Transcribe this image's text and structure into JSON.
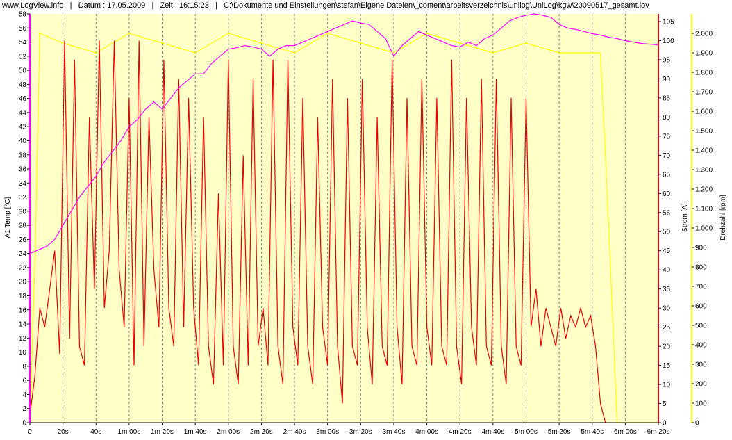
{
  "header": {
    "site": "www.LogView.info",
    "datum_label": "Datum : 17.05.2009",
    "zeit_label": "Zeit : 16:15:23",
    "path": "C:\\Dokumente und Einstellungen\\stefan\\Eigene Dateien\\_content\\arbeitsverzeichnis\\unilog\\UniLog\\kgw\\20090517_gesamt.lov"
  },
  "colors": {
    "plot_bg": "#ffffc8",
    "temp": "#ff00ff",
    "strom": "#ee0000",
    "drehzahl": "#ffff00",
    "grid": "#808080"
  },
  "chart_data": {
    "type": "line",
    "title": "",
    "xlabel": "",
    "x_range_s": [
      0,
      380
    ],
    "x_ticks": [
      "0",
      "20s",
      "40s",
      "1m 00s",
      "1m 20s",
      "1m 40s",
      "2m 00s",
      "2m 20s",
      "2m 40s",
      "3m 00s",
      "3m 20s",
      "3m 40s",
      "4m 00s",
      "4m 20s",
      "4m 40s",
      "5m 00s",
      "5m 20s",
      "5m 40s",
      "6m 00s",
      "6m 20s"
    ],
    "grid": "vertical dashed",
    "axes": {
      "left": {
        "label": "A1 Temp [°C]",
        "range": [
          0,
          58
        ],
        "ticks": [
          "0",
          "2",
          "4",
          "6",
          "8",
          "10",
          "12",
          "14",
          "16",
          "18",
          "20",
          "22",
          "24",
          "26",
          "28",
          "30",
          "32",
          "34",
          "36",
          "38",
          "40",
          "42",
          "44",
          "46",
          "48",
          "50",
          "52",
          "54",
          "56",
          "58"
        ]
      },
      "right1": {
        "label": "Strom [A]",
        "range": [
          0,
          107
        ],
        "ticks": [
          "0",
          "5",
          "10",
          "15",
          "20",
          "25",
          "30",
          "35",
          "40",
          "45",
          "50",
          "55",
          "60",
          "65",
          "70",
          "75",
          "80",
          "85",
          "90",
          "95",
          "100",
          "105"
        ]
      },
      "right2": {
        "label": "Drehzahl [rpm]",
        "range": [
          0,
          2100
        ],
        "ticks": [
          "0",
          "100",
          "200",
          "300",
          "400",
          "500",
          "600",
          "700",
          "800",
          "900",
          "1.000",
          "1.100",
          "1.200",
          "1.300",
          "1.400",
          "1.500",
          "1.600",
          "1.700",
          "1.800",
          "1.900",
          "2.000"
        ]
      }
    },
    "series": [
      {
        "name": "A1 Temp [°C]",
        "axis": "left",
        "x": [
          0,
          5,
          10,
          15,
          20,
          25,
          30,
          35,
          40,
          45,
          50,
          55,
          60,
          65,
          70,
          75,
          80,
          85,
          90,
          95,
          100,
          105,
          110,
          115,
          120,
          125,
          130,
          135,
          140,
          145,
          150,
          155,
          160,
          165,
          170,
          175,
          180,
          185,
          190,
          195,
          200,
          205,
          210,
          215,
          220,
          225,
          230,
          235,
          240,
          245,
          250,
          255,
          260,
          265,
          270,
          275,
          280,
          285,
          290,
          295,
          300,
          305,
          310,
          315,
          320,
          325,
          330,
          335,
          340,
          345,
          350,
          355,
          360,
          365,
          370,
          375,
          380
        ],
        "values": [
          24,
          24.5,
          25,
          26,
          28,
          30,
          32,
          33.5,
          35,
          37,
          38.5,
          40,
          42,
          43,
          44.5,
          45.5,
          44.5,
          46,
          47.5,
          48.5,
          49.5,
          49.5,
          51,
          52,
          53,
          53.2,
          53.5,
          53.3,
          53,
          52,
          53,
          53.5,
          53.5,
          54,
          54.5,
          55,
          55.5,
          56,
          56.5,
          57,
          56.7,
          56.5,
          55.5,
          54.5,
          52,
          53.5,
          54.5,
          55.5,
          55,
          54.5,
          54,
          53.5,
          53.3,
          54,
          53.5,
          54.5,
          55,
          56,
          57,
          57.5,
          57.8,
          58,
          57.8,
          57.5,
          56.5,
          56,
          55.8,
          55.5,
          55.2,
          55,
          54.7,
          54.5,
          54.2,
          54,
          53.8,
          53.7,
          53.6
        ]
      },
      {
        "name": "Strom [A]",
        "axis": "right1",
        "summary": "oscillating current with roughly 30 pulses between ~2 A and ~95-105 A from 6 s to 345 s, then decays to 0 A at ~345 s",
        "x": [
          0,
          3,
          6,
          9,
          12,
          15,
          18,
          21,
          24,
          27,
          30,
          33,
          36,
          39,
          42,
          45,
          48,
          51,
          54,
          57,
          60,
          63,
          66,
          69,
          72,
          75,
          78,
          81,
          84,
          87,
          90,
          93,
          96,
          99,
          102,
          105,
          108,
          111,
          114,
          117,
          120,
          123,
          126,
          129,
          132,
          135,
          138,
          141,
          144,
          147,
          150,
          153,
          156,
          159,
          162,
          165,
          168,
          171,
          174,
          177,
          180,
          183,
          186,
          189,
          192,
          195,
          198,
          201,
          204,
          207,
          210,
          213,
          216,
          219,
          222,
          225,
          228,
          231,
          234,
          237,
          240,
          243,
          246,
          249,
          252,
          255,
          258,
          261,
          264,
          267,
          270,
          273,
          276,
          279,
          282,
          285,
          288,
          291,
          294,
          297,
          300,
          303,
          306,
          309,
          312,
          315,
          318,
          321,
          324,
          327,
          330,
          333,
          336,
          339,
          342,
          345,
          348
        ],
        "values": [
          2,
          12,
          30,
          25,
          35,
          45,
          18,
          100,
          22,
          95,
          20,
          15,
          80,
          35,
          100,
          30,
          45,
          100,
          40,
          25,
          85,
          15,
          100,
          20,
          80,
          40,
          25,
          95,
          30,
          20,
          90,
          25,
          85,
          30,
          15,
          80,
          20,
          10,
          60,
          15,
          95,
          20,
          10,
          70,
          15,
          90,
          20,
          30,
          15,
          95,
          20,
          10,
          95,
          25,
          15,
          85,
          20,
          10,
          80,
          25,
          15,
          90,
          20,
          5,
          85,
          20,
          15,
          90,
          25,
          10,
          80,
          20,
          15,
          95,
          25,
          10,
          85,
          20,
          15,
          90,
          25,
          15,
          85,
          20,
          15,
          95,
          20,
          10,
          85,
          25,
          15,
          90,
          20,
          15,
          90,
          20,
          10,
          85,
          20,
          15,
          85,
          25,
          35,
          20,
          30,
          25,
          20,
          30,
          22,
          28,
          25,
          30,
          25,
          28,
          20,
          5,
          0
        ]
      },
      {
        "name": "Drehzahl [rpm]",
        "axis": "right2",
        "summary": "rises to ~2000 rpm at ~6 s, fluctuates 1800-2050 rpm until ~325 s, holds ~1900 rpm until ~345 s, falls to 0 rpm by ~355 s",
        "x": [
          0,
          3,
          6,
          20,
          40,
          60,
          80,
          100,
          120,
          140,
          160,
          180,
          200,
          220,
          240,
          260,
          280,
          300,
          320,
          325,
          330,
          340,
          345,
          350,
          355,
          360,
          380
        ],
        "values": [
          0,
          800,
          2000,
          1950,
          1900,
          2000,
          1950,
          1900,
          2000,
          1950,
          1900,
          2000,
          1950,
          1900,
          2000,
          1950,
          1900,
          1950,
          1900,
          1900,
          1900,
          1900,
          1900,
          1000,
          0,
          0,
          0
        ]
      }
    ]
  }
}
